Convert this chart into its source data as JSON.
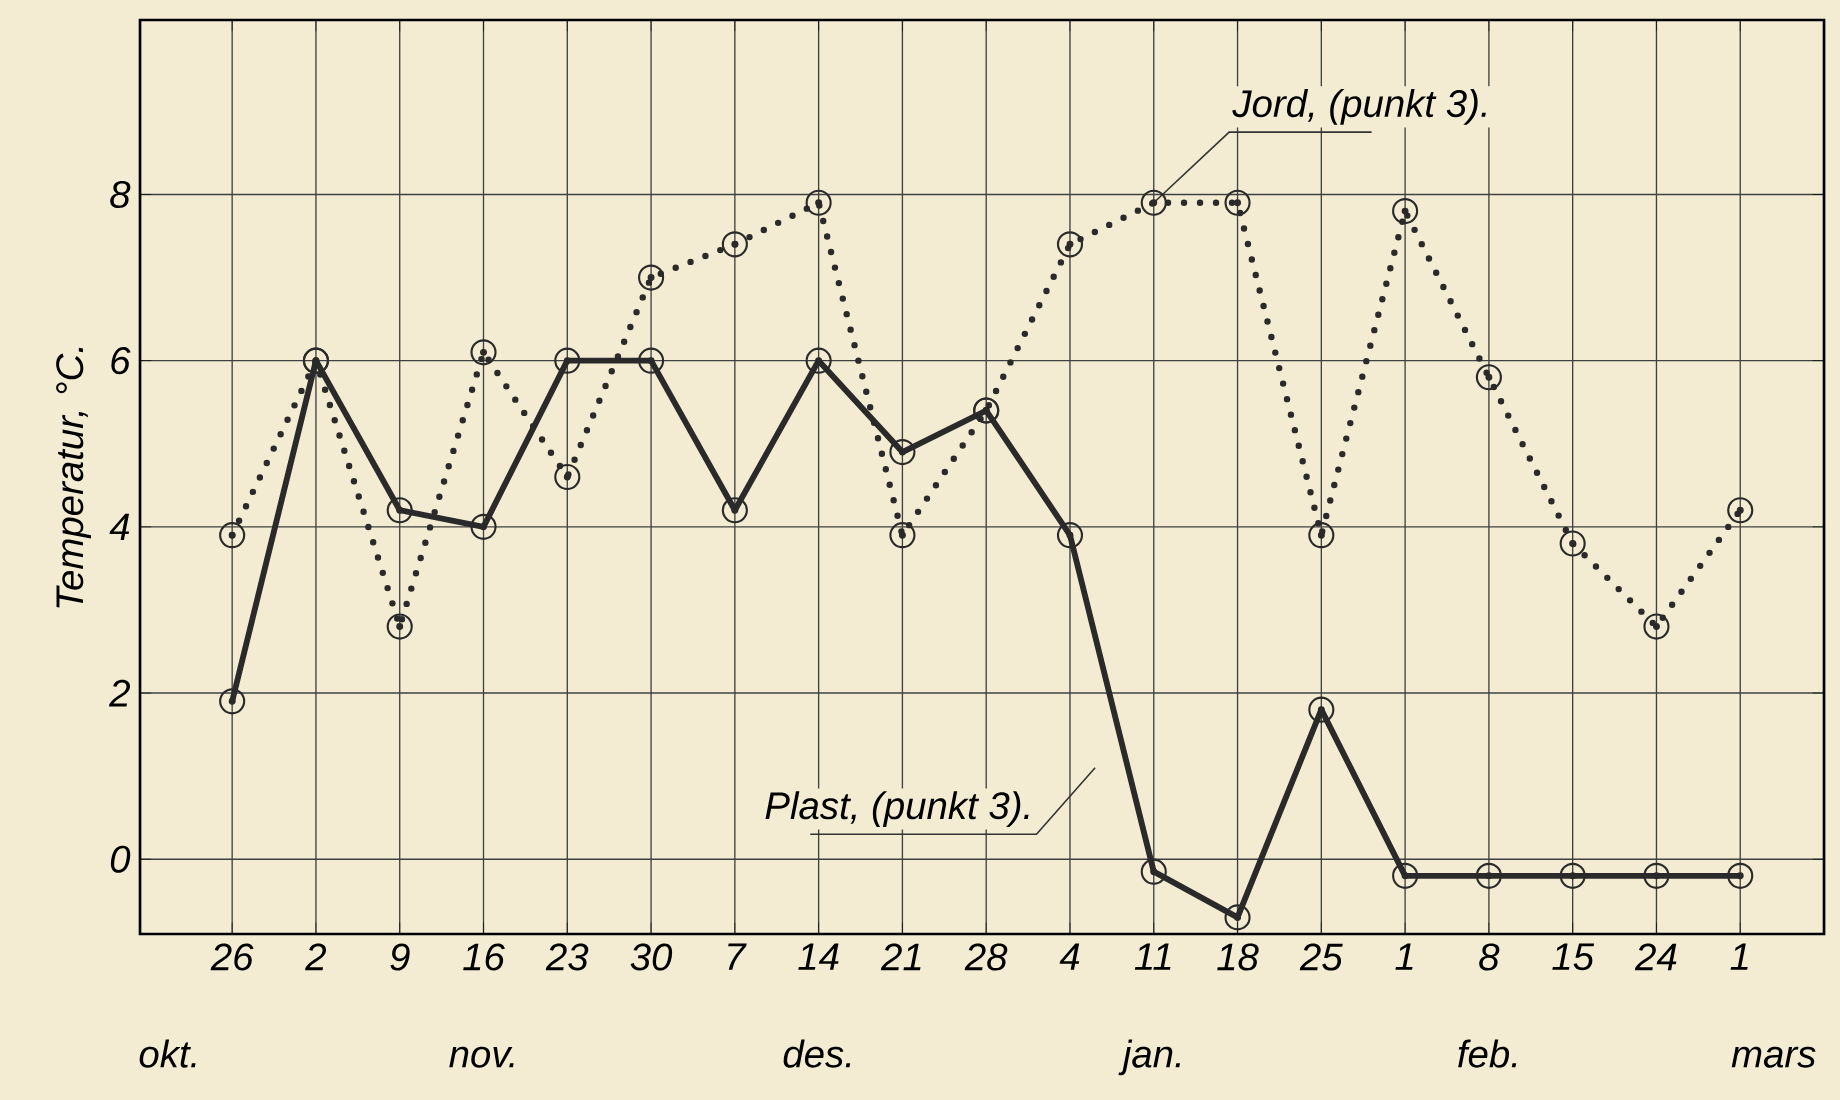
{
  "chart_data": {
    "type": "line",
    "ylabel": "Temperatur, °C.",
    "categories": [
      "26",
      "2",
      "9",
      "16",
      "23",
      "30",
      "7",
      "14",
      "21",
      "28",
      "4",
      "11",
      "18",
      "25",
      "1",
      "8",
      "15",
      "24",
      "1"
    ],
    "series": [
      {
        "name": "Jord, (punkt 3).",
        "color": "#2a2a2a",
        "line_style": "dotted",
        "values": [
          3.9,
          6.0,
          2.8,
          6.1,
          4.6,
          7.0,
          7.4,
          7.9,
          3.9,
          5.4,
          7.4,
          7.9,
          7.9,
          3.9,
          7.8,
          5.8,
          3.8,
          2.8,
          4.2
        ]
      },
      {
        "name": "Plast, (punkt 3).",
        "color": "#2a2a2a",
        "line_style": "solid",
        "values": [
          1.9,
          6.0,
          4.2,
          4.0,
          6.0,
          6.0,
          4.2,
          6.0,
          4.9,
          5.4,
          3.9,
          -0.15,
          -0.7,
          1.8,
          -0.2,
          -0.2,
          -0.2,
          -0.2,
          -0.2
        ]
      }
    ],
    "ylim": [
      -0.9,
      10.1
    ],
    "yticks": [
      0,
      2,
      4,
      6,
      8
    ],
    "grid": true,
    "marker": "circle",
    "annotations": [
      "okt.",
      "nov.",
      "des.",
      "jan.",
      "feb.",
      "mars"
    ]
  }
}
